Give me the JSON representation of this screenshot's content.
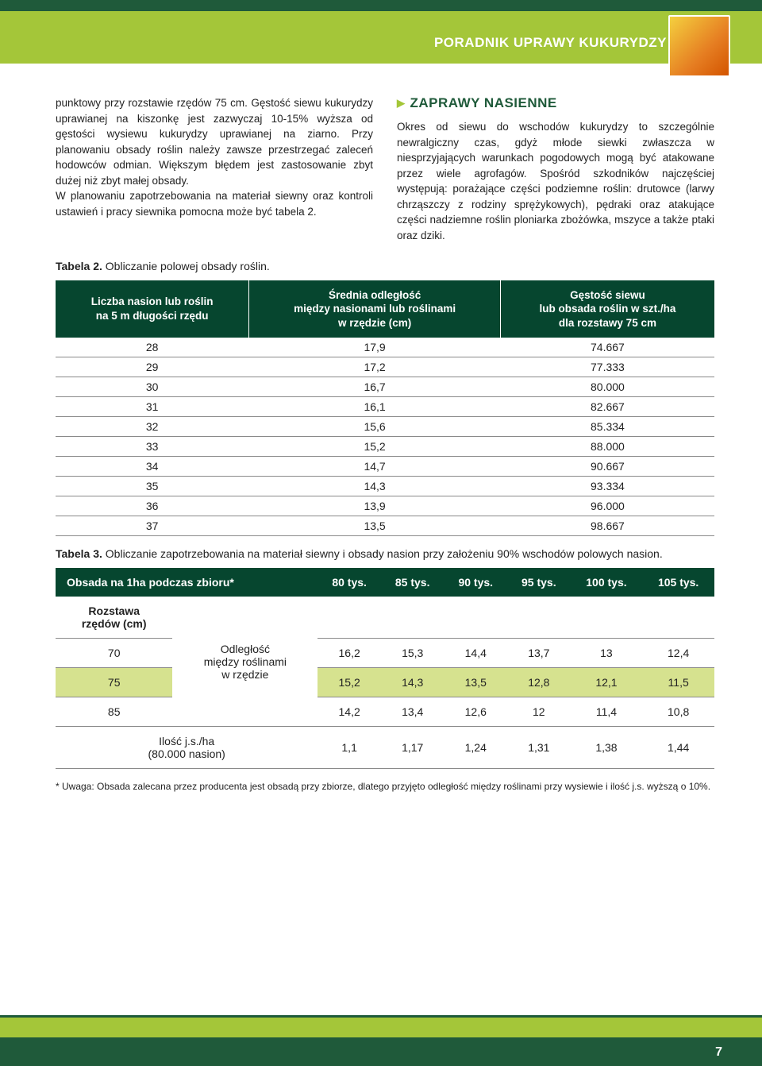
{
  "colors": {
    "header_band": "#a4c639",
    "dark_green": "#06462f",
    "footer_dark": "#1f5a3a",
    "highlight_row": "#d6e28f",
    "text": "#222222",
    "white": "#ffffff",
    "rule": "#8a8a8a"
  },
  "typography": {
    "body_fontsize": 13.5,
    "heading_fontsize": 17,
    "table_header_fontsize": 13.5,
    "footnote_fontsize": 12
  },
  "header": {
    "title": "PORADNIK UPRAWY KUKURYDZY"
  },
  "left_paragraph": "punktowy przy rozstawie rzędów 75 cm. Gęstość siewu kukurydzy uprawianej na kiszonkę jest zazwyczaj 10-15% wyższa od gęstości wysiewu kukurydzy uprawianej na ziarno. Przy planowaniu obsady roślin należy zawsze przestrzegać zaleceń hodowców odmian. Większym błędem jest zastosowanie zbyt dużej niż zbyt małej obsady.\nW planowaniu zapotrzebowania na materiał siewny oraz kontroli ustawień i pracy siewnika pomocna może być tabela 2.",
  "right_section": {
    "heading": "ZAPRAWY NASIENNE",
    "paragraph": "Okres od siewu do wschodów kukurydzy to szczególnie newralgiczny czas, gdyż młode siewki zwłaszcza w niesprzyjających warunkach pogodowych mogą być atakowane przez wiele agrofagów. Spośród szkodników najczęściej występują: porażające części podziemne roślin: drutowce (larwy chrząszczy z rodziny sprężykowych), pędraki oraz atakujące części nadziemne roślin ploniarka zbożówka, mszyce a także ptaki oraz dziki."
  },
  "table2": {
    "caption_bold": "Tabela 2.",
    "caption_rest": " Obliczanie polowej obsady roślin.",
    "columns": [
      "Liczba nasion lub roślin\nna 5 m długości rzędu",
      "Średnia odległość\nmiędzy nasionami lub roślinami\nw rzędzie (cm)",
      "Gęstość siewu\nlub obsada roślin w szt./ha\ndla rozstawy 75 cm"
    ],
    "rows": [
      [
        "28",
        "17,9",
        "74.667"
      ],
      [
        "29",
        "17,2",
        "77.333"
      ],
      [
        "30",
        "16,7",
        "80.000"
      ],
      [
        "31",
        "16,1",
        "82.667"
      ],
      [
        "32",
        "15,6",
        "85.334"
      ],
      [
        "33",
        "15,2",
        "88.000"
      ],
      [
        "34",
        "14,7",
        "90.667"
      ],
      [
        "35",
        "14,3",
        "93.334"
      ],
      [
        "36",
        "13,9",
        "96.000"
      ],
      [
        "37",
        "13,5",
        "98.667"
      ]
    ]
  },
  "table3": {
    "caption_bold": "Tabela 3.",
    "caption_rest": " Obliczanie zapotrzebowania na materiał siewny i obsady nasion przy założeniu 90% wschodów polowych nasion.",
    "header_left": "Obsada na 1ha podczas zbioru*",
    "header_values": [
      "80 tys.",
      "85 tys.",
      "90 tys.",
      "95 tys.",
      "100 tys.",
      "105 tys."
    ],
    "row_spacing_label": "Rozstawa\nrzędów (cm)",
    "middle_label": "Odległość\nmiędzy roślinami\nw rzędzie",
    "spacing_rows": [
      {
        "spacing": "70",
        "values": [
          "16,2",
          "15,3",
          "14,4",
          "13,7",
          "13",
          "12,4"
        ],
        "highlight": false
      },
      {
        "spacing": "75",
        "values": [
          "15,2",
          "14,3",
          "13,5",
          "12,8",
          "12,1",
          "11,5"
        ],
        "highlight": true
      },
      {
        "spacing": "85",
        "values": [
          "14,2",
          "13,4",
          "12,6",
          "12",
          "11,4",
          "10,8"
        ],
        "highlight": false
      }
    ],
    "js_row": {
      "label": "Ilość j.s./ha\n(80.000 nasion)",
      "values": [
        "1,1",
        "1,17",
        "1,24",
        "1,31",
        "1,38",
        "1,44"
      ]
    }
  },
  "footnote": "* Uwaga: Obsada zalecana przez producenta jest obsadą przy zbiorze, dlatego przyjęto odległość między roślinami przy wysiewie i ilość j.s. wyższą o 10%.",
  "page_number": "7"
}
